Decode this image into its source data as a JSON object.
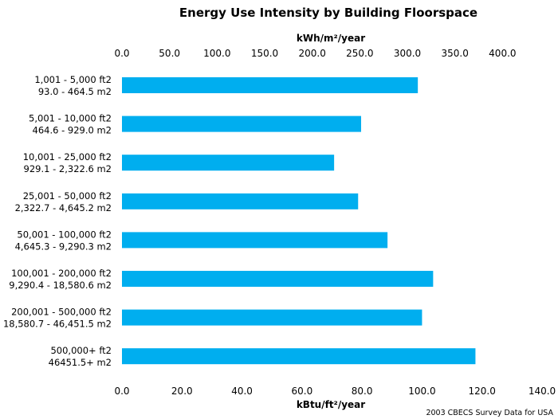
{
  "chart_data": {
    "type": "bar",
    "orientation": "horizontal",
    "title": "Energy Use Intensity by Building Floorspace",
    "categories": [
      [
        "1,001 - 5,000 ft2",
        "93.0 - 464.5 m2"
      ],
      [
        "5,001 - 10,000 ft2",
        "464.6 - 929.0 m2"
      ],
      [
        "10,001 - 25,000 ft2",
        "929.1 - 2,322.6 m2"
      ],
      [
        "25,001 - 50,000 ft2",
        "2,322.7 - 4,645.2 m2"
      ],
      [
        "50,001 - 100,000 ft2",
        "4,645.3 - 9,290.3 m2"
      ],
      [
        "100,001 - 200,000 ft2",
        "9,290.4 - 18,580.6 m2"
      ],
      [
        "200,001 - 500,000 ft2",
        "18,580.7 - 46,451.5 m2"
      ],
      [
        "500,000+ ft2",
        "46451.5+ m2"
      ]
    ],
    "values": [
      98.6,
      79.7,
      70.7,
      78.7,
      88.5,
      103.7,
      100.0,
      117.8
    ],
    "xlabel": "kBtu/ft²/year",
    "xlim": [
      0,
      140
    ],
    "xticks": [
      "0.0",
      "20.0",
      "40.0",
      "60.0",
      "80.0",
      "100.0",
      "120.0",
      "140.0"
    ],
    "x2label": "kWh/m²/year",
    "x2lim": [
      0,
      441.6
    ],
    "x2ticks": [
      "0.0",
      "50.0",
      "100.0",
      "150.0",
      "200.0",
      "250.0",
      "300.0",
      "350.0",
      "400.0"
    ],
    "grid": false,
    "bar_color": "#00aeef",
    "note": "2003  CBECS Survey Data for USA"
  }
}
